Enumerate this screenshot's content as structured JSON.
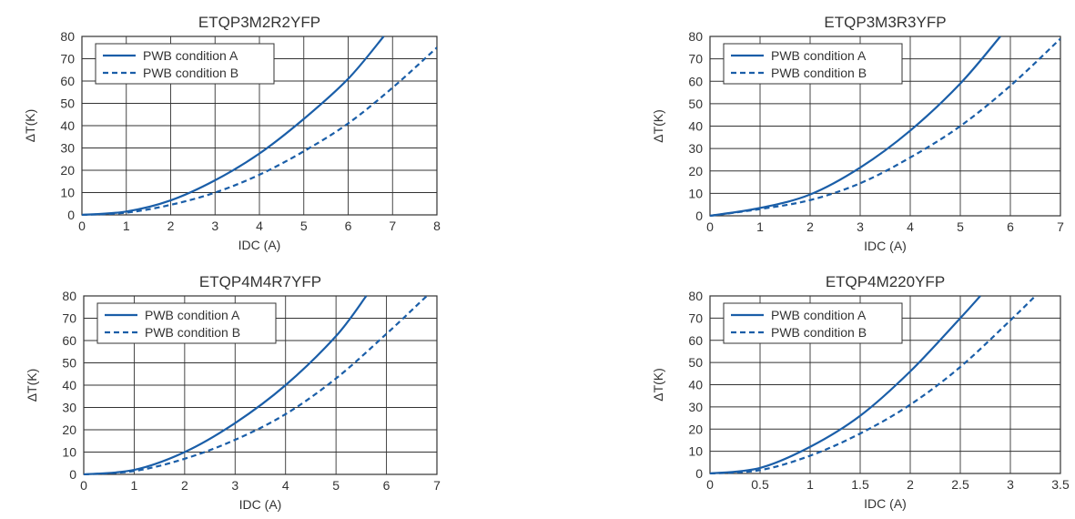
{
  "chart_data": [
    {
      "type": "line",
      "title": "ETQP3M2R2YFP",
      "xlabel": "IDC (A)",
      "ylabel": "ΔT(K)",
      "xlim": [
        0,
        8
      ],
      "ylim": [
        0,
        80
      ],
      "xticks": [
        0,
        1,
        2,
        3,
        4,
        5,
        6,
        7,
        8
      ],
      "xtick_labels": [
        "0",
        "1",
        "2",
        "3",
        "4",
        "5",
        "6",
        "7",
        "8"
      ],
      "yticks": [
        0,
        10,
        20,
        30,
        40,
        50,
        60,
        70,
        80
      ],
      "ytick_labels": [
        "0",
        "10",
        "20",
        "30",
        "40",
        "50",
        "60",
        "70",
        "80"
      ],
      "grid": true,
      "legend": "top-left",
      "colors": {
        "line": "#1a5ea8",
        "grid": "#333333"
      },
      "series": [
        {
          "name": "PWB condition A",
          "style": "solid",
          "x": [
            0,
            1,
            2,
            3,
            4,
            5,
            6,
            6.8
          ],
          "y": [
            0,
            1.5,
            6.5,
            15.5,
            27.5,
            43,
            61,
            80
          ]
        },
        {
          "name": "PWB condition B",
          "style": "dashed",
          "x": [
            0,
            1,
            2,
            3,
            4,
            5,
            6,
            7,
            8
          ],
          "y": [
            0,
            1,
            4.5,
            10,
            18,
            28.5,
            41,
            57,
            75
          ]
        }
      ]
    },
    {
      "type": "line",
      "title": "ETQP3M3R3YFP",
      "xlabel": "IDC (A)",
      "ylabel": "ΔT(K)",
      "xlim": [
        0,
        7
      ],
      "ylim": [
        0,
        80
      ],
      "xticks": [
        0,
        1,
        2,
        3,
        4,
        5,
        6,
        7
      ],
      "xtick_labels": [
        "0",
        "1",
        "2",
        "3",
        "4",
        "5",
        "6",
        "7"
      ],
      "yticks": [
        0,
        10,
        20,
        30,
        40,
        50,
        60,
        70,
        80
      ],
      "ytick_labels": [
        "0",
        "10",
        "20",
        "30",
        "40",
        "50",
        "60",
        "70",
        "80"
      ],
      "grid": true,
      "legend": "top-left",
      "colors": {
        "line": "#1a5ea8",
        "grid": "#333333"
      },
      "series": [
        {
          "name": "PWB condition A",
          "style": "solid",
          "x": [
            0,
            1,
            2,
            3,
            4,
            5,
            5.8
          ],
          "y": [
            0,
            3.5,
            9.5,
            21.5,
            38,
            59,
            80
          ]
        },
        {
          "name": "PWB condition B",
          "style": "dashed",
          "x": [
            0,
            1,
            2,
            3,
            4,
            5,
            6,
            7
          ],
          "y": [
            0,
            3,
            7,
            14.5,
            26,
            40,
            58,
            79
          ]
        }
      ]
    },
    {
      "type": "line",
      "title": "ETQP4M4R7YFP",
      "xlabel": "IDC (A)",
      "ylabel": "ΔT(K)",
      "xlim": [
        0,
        7
      ],
      "ylim": [
        0,
        80
      ],
      "xticks": [
        0,
        1,
        2,
        3,
        4,
        5,
        6,
        7
      ],
      "xtick_labels": [
        "0",
        "1",
        "2",
        "3",
        "4",
        "5",
        "6",
        "7"
      ],
      "yticks": [
        0,
        10,
        20,
        30,
        40,
        50,
        60,
        70,
        80
      ],
      "ytick_labels": [
        "0",
        "10",
        "20",
        "30",
        "40",
        "50",
        "60",
        "70",
        "80"
      ],
      "grid": true,
      "legend": "top-left",
      "colors": {
        "line": "#1a5ea8",
        "grid": "#333333"
      },
      "series": [
        {
          "name": "PWB condition A",
          "style": "solid",
          "x": [
            0,
            1,
            2,
            3,
            4,
            5,
            5.6
          ],
          "y": [
            0,
            2,
            10,
            23,
            40,
            62,
            80
          ]
        },
        {
          "name": "PWB condition B",
          "style": "dashed",
          "x": [
            0,
            1,
            2,
            3,
            4,
            5,
            6,
            6.8
          ],
          "y": [
            0,
            1.5,
            7,
            15.5,
            27,
            43,
            63,
            80
          ]
        }
      ]
    },
    {
      "type": "line",
      "title": "ETQP4M220YFP",
      "xlabel": "IDC (A)",
      "ylabel": "ΔT(K)",
      "xlim": [
        0,
        3.5
      ],
      "ylim": [
        0,
        80
      ],
      "xticks": [
        0,
        0.5,
        1,
        1.5,
        2,
        2.5,
        3,
        3.5
      ],
      "xtick_labels": [
        "0",
        "0.5",
        "1",
        "1.5",
        "2",
        "2.5",
        "3",
        "3.5"
      ],
      "yticks": [
        0,
        10,
        20,
        30,
        40,
        50,
        60,
        70,
        80
      ],
      "ytick_labels": [
        "0",
        "10",
        "20",
        "30",
        "40",
        "50",
        "60",
        "70",
        "80"
      ],
      "grid": true,
      "legend": "top-left",
      "colors": {
        "line": "#1a5ea8",
        "grid": "#333333"
      },
      "series": [
        {
          "name": "PWB condition A",
          "style": "solid",
          "x": [
            0,
            0.5,
            1,
            1.5,
            2,
            2.5,
            2.7
          ],
          "y": [
            0,
            2.5,
            12,
            26,
            46,
            70,
            80
          ]
        },
        {
          "name": "PWB condition B",
          "style": "dashed",
          "x": [
            0,
            0.5,
            1,
            1.5,
            2,
            2.5,
            3,
            3.25
          ],
          "y": [
            0,
            1.5,
            8,
            18,
            31,
            48,
            69,
            80
          ]
        }
      ]
    }
  ]
}
